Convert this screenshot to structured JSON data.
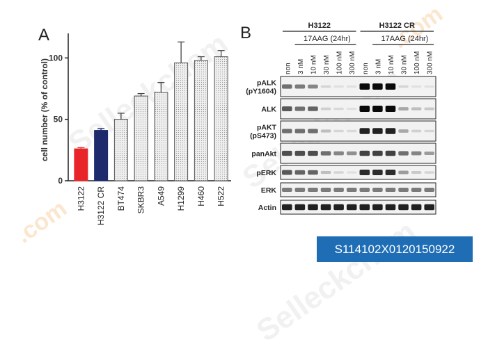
{
  "watermark": {
    "brand": "Selleckchem",
    "domain": ".com"
  },
  "panel_a": {
    "letter": "A"
  },
  "panel_b": {
    "letter": "B",
    "group_labels": [
      "H3122",
      "H3122 CR"
    ],
    "treatment_label": "17AAG (24hr)",
    "lanes": [
      "non",
      "3 nM",
      "10 nM",
      "30 nM",
      "100 nM",
      "300 nM"
    ],
    "blots": [
      {
        "label": "pALK\n(pY1604)",
        "intensity": [
          0.55,
          0.5,
          0.45,
          0.1,
          0.05,
          0.05,
          1.0,
          1.0,
          1.0,
          0.1,
          0.05,
          0.05
        ]
      },
      {
        "label": "ALK",
        "intensity": [
          0.65,
          0.55,
          0.6,
          0.12,
          0.08,
          0.05,
          1.0,
          1.0,
          1.0,
          0.3,
          0.2,
          0.15
        ]
      },
      {
        "label": "pAKT\n(pS473)",
        "intensity": [
          0.55,
          0.55,
          0.55,
          0.2,
          0.1,
          0.08,
          0.9,
          0.9,
          0.9,
          0.3,
          0.12,
          0.1
        ]
      },
      {
        "label": "panAkt",
        "intensity": [
          0.7,
          0.7,
          0.7,
          0.55,
          0.45,
          0.4,
          0.75,
          0.75,
          0.75,
          0.55,
          0.45,
          0.35
        ]
      },
      {
        "label": "pERK",
        "intensity": [
          0.65,
          0.6,
          0.6,
          0.2,
          0.1,
          0.05,
          0.85,
          0.85,
          0.85,
          0.35,
          0.15,
          0.1
        ]
      },
      {
        "label": "ERK",
        "intensity": [
          0.5,
          0.5,
          0.5,
          0.5,
          0.5,
          0.5,
          0.5,
          0.5,
          0.5,
          0.5,
          0.5,
          0.5
        ]
      },
      {
        "label": "Actin",
        "intensity": [
          0.9,
          0.9,
          0.9,
          0.9,
          0.9,
          0.9,
          0.9,
          0.9,
          0.9,
          0.9,
          0.9,
          0.9
        ]
      }
    ]
  },
  "catalog_label": "S114102X0120150922",
  "colors": {
    "red": "#e8262a",
    "navy": "#1d2a6b",
    "dotted": "#d8d8d8",
    "label_bg": "#1f6eb5"
  },
  "chart_data": {
    "type": "bar",
    "title": "",
    "xlabel": "",
    "ylabel": "cell number (% of control)",
    "ylim": [
      0,
      120
    ],
    "yticks": [
      0,
      50,
      100
    ],
    "categories": [
      "H3122",
      "H3122 CR",
      "BT474",
      "SKBR3",
      "A549",
      "H1299",
      "H460",
      "H522"
    ],
    "values": [
      26,
      41,
      50,
      69,
      72,
      96,
      98,
      101
    ],
    "errors": [
      1,
      1.5,
      5,
      2,
      8,
      17,
      3,
      5
    ],
    "bar_colors": [
      "#e8262a",
      "#1d2a6b",
      "dotted",
      "dotted",
      "dotted",
      "dotted",
      "dotted",
      "dotted"
    ],
    "grid": false,
    "legend": "none"
  }
}
